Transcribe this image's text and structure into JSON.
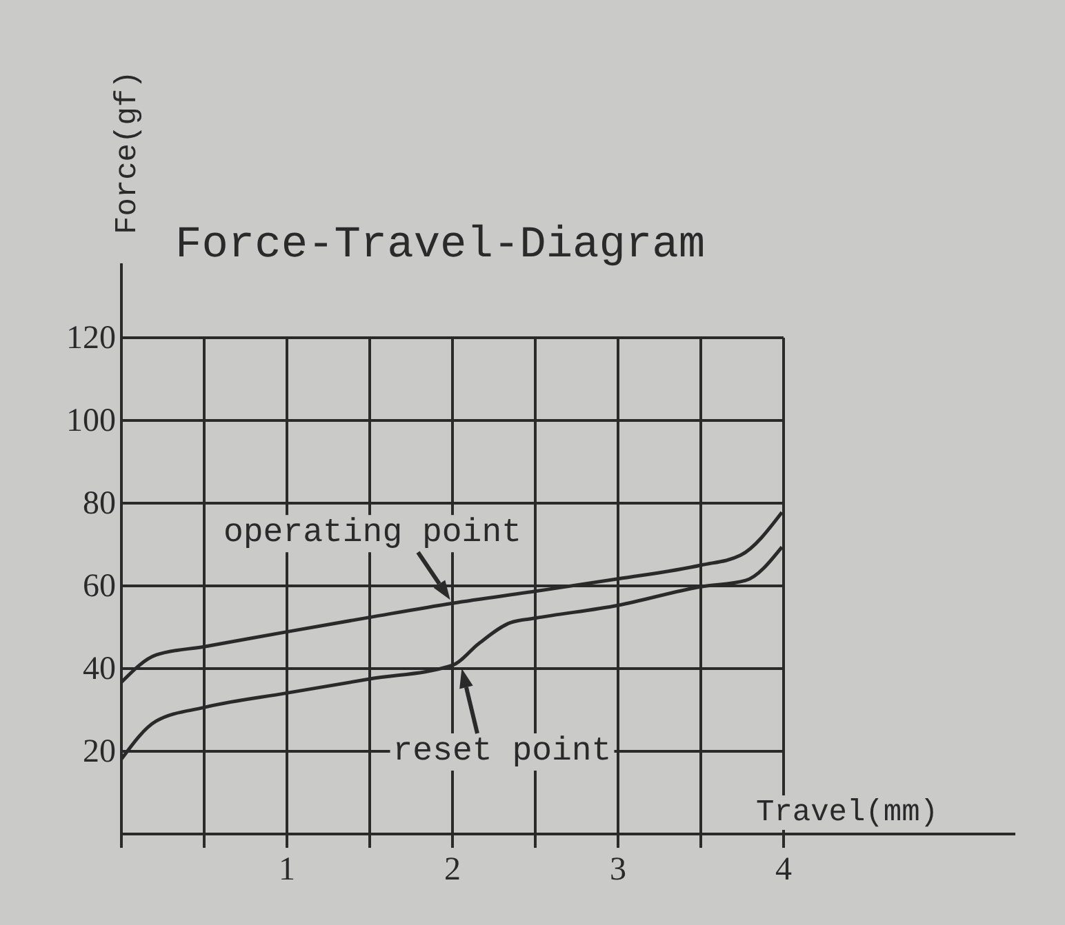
{
  "chart_data": {
    "type": "line",
    "title": "Force-Travel-Diagram",
    "xlabel": "Travel(mm)",
    "ylabel": "Force(gf)",
    "xlim": [
      0,
      5.4
    ],
    "ylim": [
      0,
      138
    ],
    "xticks": [
      {
        "value": 0,
        "label": null
      },
      {
        "value": 0.5,
        "label": null
      },
      1,
      {
        "value": 1.5,
        "label": null
      },
      2,
      {
        "value": 2.5,
        "label": null
      },
      3,
      {
        "value": 3.5,
        "label": null
      },
      4
    ],
    "yticks": [
      20,
      40,
      60,
      80,
      100,
      120
    ],
    "grid": true,
    "marker": "none",
    "line_style": "solid",
    "series": [
      {
        "color": "#2a2a2a",
        "x": [
          0,
          0.21,
          0.5,
          1,
          1.5,
          2,
          2.5,
          3,
          3.5,
          3.74,
          3.99
        ],
        "values": [
          36.7,
          43.3,
          45.3,
          48.9,
          52.4,
          55.8,
          58.7,
          61.7,
          65,
          67.4,
          77.8
        ]
      },
      {
        "color": "#2a2a2a",
        "x": [
          0,
          0.21,
          0.5,
          1,
          1.5,
          2,
          2.16,
          2.35,
          2.5,
          3,
          3.5,
          3.77,
          3.99
        ],
        "values": [
          18.1,
          27.3,
          30.6,
          34.1,
          37.5,
          40.8,
          46.1,
          51.1,
          52.2,
          55.3,
          59.8,
          61.3,
          69.4
        ]
      }
    ],
    "annotations": [
      {
        "text": "operating point",
        "x": 2,
        "y": 55.8
      },
      {
        "text": "reset point",
        "x": 2.05,
        "y": 41
      }
    ]
  }
}
